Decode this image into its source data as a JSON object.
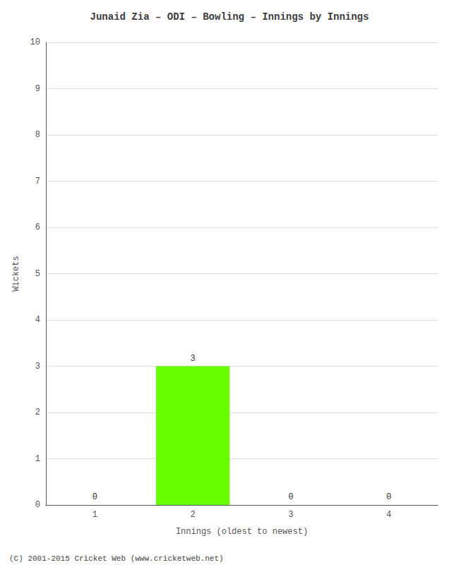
{
  "chart_data": {
    "type": "bar",
    "title": "Junaid Zia – ODI – Bowling – Innings by Innings",
    "xlabel": "Innings (oldest to newest)",
    "ylabel": "Wickets",
    "categories": [
      "1",
      "2",
      "3",
      "4"
    ],
    "values": [
      0,
      3,
      0,
      0
    ],
    "color": "#66ff00",
    "ylim": [
      0,
      10
    ],
    "yticks": [
      0,
      1,
      2,
      3,
      4,
      5,
      6,
      7,
      8,
      9,
      10
    ],
    "grid": true,
    "data_labels": true,
    "annotations": [
      "(C) 2001-2015 Cricket Web (www.cricketweb.net)"
    ]
  }
}
